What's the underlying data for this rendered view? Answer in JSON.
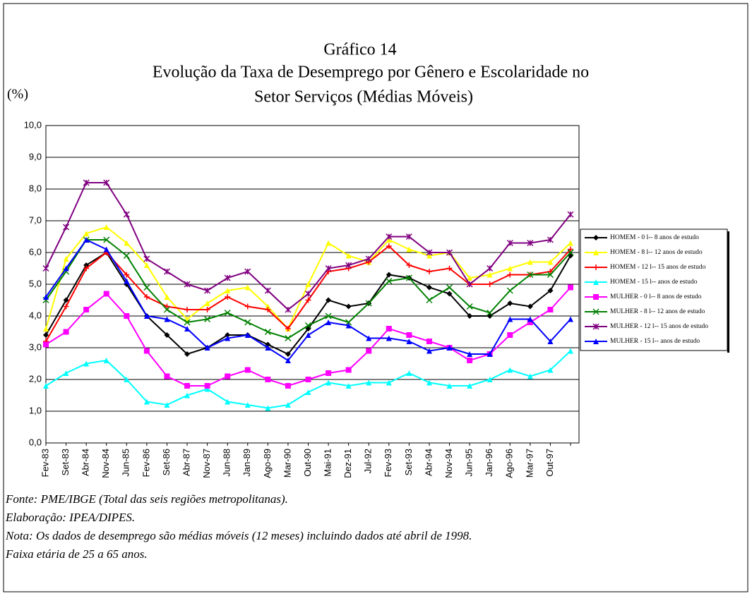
{
  "chart_data": {
    "type": "line",
    "title": "Gráfico 14",
    "subtitle": [
      "Evolução da Taxa de Desemprego por Gênero e Escolaridade no",
      "Setor Serviços (Médias Móveis)"
    ],
    "y_label": "(%)",
    "categories": [
      "Fev-83",
      "Set-83",
      "Abr-84",
      "Nov-84",
      "Jun-85",
      "Fev-86",
      "Set-86",
      "Abr-87",
      "Nov-87",
      "Jun-88",
      "Jan-89",
      "Ago-89",
      "Mar-90",
      "Out-90",
      "Mai-91",
      "Dez-91",
      "Jul-92",
      "Fev-93",
      "Set-93",
      "Abr-94",
      "Nov-94",
      "Jun-95",
      "Jan-96",
      "Ago-96",
      "Mar-97",
      "Out-97",
      null
    ],
    "ylim": [
      0,
      10
    ],
    "yticks": [
      {
        "value": 0,
        "label": "0,0"
      },
      {
        "value": 1,
        "label": "1,0"
      },
      {
        "value": 2,
        "label": "2,0"
      },
      {
        "value": 3,
        "label": "3,0"
      },
      {
        "value": 4,
        "label": "4,0"
      },
      {
        "value": 5,
        "label": "5,0"
      },
      {
        "value": 6,
        "label": "6,0"
      },
      {
        "value": 7,
        "label": "7,0"
      },
      {
        "value": 8,
        "label": "8,0"
      },
      {
        "value": 9,
        "label": "9,0"
      },
      {
        "value": 10,
        "label": "10,0"
      }
    ],
    "grid": true,
    "legend": "right",
    "series": [
      {
        "name": "HOMEM - 0 l-- 8 anos de estudo",
        "color": "#000000",
        "marker": "diamond",
        "values": [
          3.4,
          4.5,
          5.6,
          6.0,
          5.0,
          4.0,
          3.4,
          2.8,
          3.0,
          3.4,
          3.4,
          3.1,
          2.8,
          3.6,
          4.5,
          4.3,
          4.4,
          5.3,
          5.2,
          4.9,
          4.7,
          4.0,
          4.0,
          4.4,
          4.3,
          4.8,
          5.9
        ]
      },
      {
        "name": "HOMEM - 8 l-- 12 anos de estudo",
        "color": "#ffff00",
        "marker": "triangle",
        "values": [
          3.6,
          5.8,
          6.6,
          6.8,
          6.3,
          5.6,
          4.6,
          3.9,
          4.4,
          4.8,
          4.9,
          4.3,
          3.6,
          5.0,
          6.3,
          5.9,
          5.7,
          6.4,
          6.1,
          5.9,
          6.0,
          5.2,
          5.3,
          5.5,
          5.7,
          5.7,
          6.3
        ]
      },
      {
        "name": "HOMEM - 12 l-- 15 anos de estudo",
        "color": "#ff0000",
        "marker": "plus",
        "values": [
          3.2,
          4.3,
          5.5,
          6.0,
          5.3,
          4.6,
          4.3,
          4.2,
          4.2,
          4.6,
          4.3,
          4.2,
          3.6,
          4.5,
          5.4,
          5.5,
          5.7,
          6.2,
          5.6,
          5.4,
          5.5,
          5.0,
          5.0,
          5.3,
          5.3,
          5.4,
          6.1
        ]
      },
      {
        "name": "HOMEM - 15 l-- anos de estudo",
        "color": "#00ffff",
        "marker": "triangle",
        "values": [
          1.8,
          2.2,
          2.5,
          2.6,
          2.0,
          1.3,
          1.2,
          1.5,
          1.7,
          1.3,
          1.2,
          1.1,
          1.2,
          1.6,
          1.9,
          1.8,
          1.9,
          1.9,
          2.2,
          1.9,
          1.8,
          1.8,
          2.0,
          2.3,
          2.1,
          2.3,
          2.9
        ]
      },
      {
        "name": "MULHER - 0 l-- 8 anos de estudo",
        "color": "#ff00ff",
        "marker": "square",
        "values": [
          3.1,
          3.5,
          4.2,
          4.7,
          4.0,
          2.9,
          2.1,
          1.8,
          1.8,
          2.1,
          2.3,
          2.0,
          1.8,
          2.0,
          2.2,
          2.3,
          2.9,
          3.6,
          3.4,
          3.2,
          3.0,
          2.6,
          2.8,
          3.4,
          3.8,
          4.2,
          4.9
        ]
      },
      {
        "name": "MULHER - 8 l-- 12 anos de estudo",
        "color": "#008000",
        "marker": "x",
        "values": [
          4.5,
          5.4,
          6.4,
          6.4,
          5.9,
          4.9,
          4.2,
          3.8,
          3.9,
          4.1,
          3.8,
          3.5,
          3.3,
          3.7,
          4.0,
          3.8,
          4.4,
          5.1,
          5.2,
          4.5,
          4.9,
          4.3,
          4.1,
          4.8,
          5.3,
          5.3,
          6.0
        ]
      },
      {
        "name": "MULHER - 12 l-- 15 anos de estudo",
        "color": "#800080",
        "marker": "star",
        "values": [
          5.5,
          6.8,
          8.2,
          8.2,
          7.2,
          5.8,
          5.4,
          5.0,
          4.8,
          5.2,
          5.4,
          4.8,
          4.2,
          4.7,
          5.5,
          5.6,
          5.8,
          6.5,
          6.5,
          6.0,
          6.0,
          5.0,
          5.5,
          6.3,
          6.3,
          6.4,
          7.2
        ]
      },
      {
        "name": "MULHER - 15 l-- anos de estudo",
        "color": "#0000ff",
        "marker": "triangle",
        "values": [
          4.6,
          5.5,
          6.4,
          6.1,
          5.1,
          4.0,
          3.9,
          3.6,
          3.0,
          3.3,
          3.4,
          3.0,
          2.6,
          3.4,
          3.8,
          3.7,
          3.3,
          3.3,
          3.2,
          2.9,
          3.0,
          2.8,
          2.8,
          3.9,
          3.9,
          3.2,
          3.9
        ]
      }
    ],
    "notes": [
      "Fonte: PME/IBGE (Total das seis regiões metropolitanas).",
      "Elaboração: IPEA/DIPES.",
      "Nota: Os dados de desemprego são médias móveis (12 meses) incluindo dados até abril de 1998.",
      "Faixa etária de 25 a 65 anos."
    ]
  }
}
